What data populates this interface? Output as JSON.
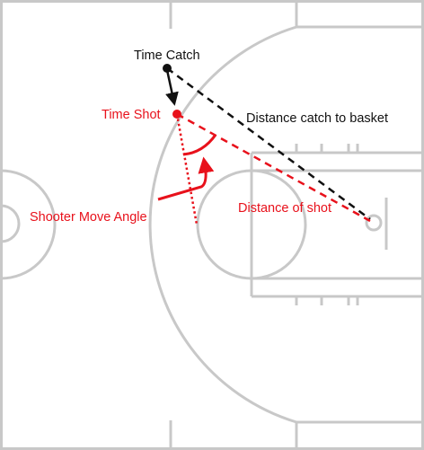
{
  "labels": {
    "time_catch": "Time Catch",
    "time_shot": "Time Shot",
    "distance_catch_to_basket": "Distance catch to basket",
    "distance_of_shot": "Distance of shot",
    "shooter_move_angle": "Shooter Move Angle"
  },
  "colors": {
    "court_lines": "#c8c8c8",
    "annotation_black": "#111111",
    "annotation_red": "#e8111b",
    "background": "#ffffff"
  }
}
